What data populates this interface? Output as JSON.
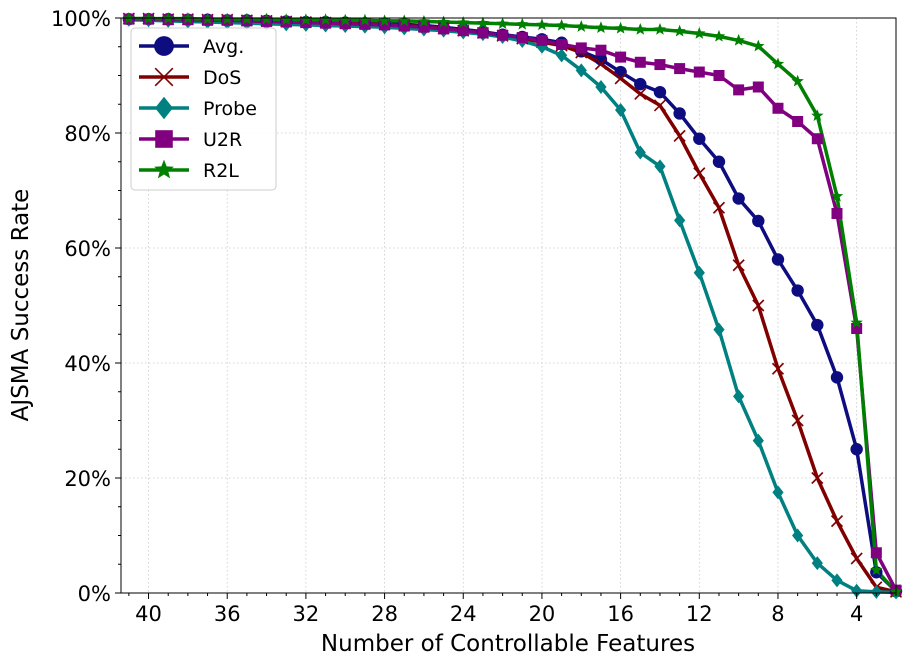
{
  "chart_data": {
    "type": "line",
    "title": "",
    "xlabel": "Number of Controllable Features",
    "ylabel": "AJSMA Success Rate",
    "x_reversed": true,
    "xlim": [
      41.4,
      2.0
    ],
    "ylim": [
      0,
      100
    ],
    "xticks": [
      40,
      36,
      32,
      28,
      24,
      20,
      16,
      12,
      8,
      4
    ],
    "xtick_labels": [
      "40",
      "36",
      "32",
      "28",
      "24",
      "20",
      "16",
      "12",
      "8",
      "4"
    ],
    "yticks": [
      0,
      20,
      40,
      60,
      80,
      100
    ],
    "ytick_labels": [
      "0%",
      "20%",
      "40%",
      "60%",
      "80%",
      "100%"
    ],
    "grid": true,
    "legend_position": "top-left",
    "x": [
      41,
      40,
      39,
      38,
      37,
      36,
      35,
      34,
      33,
      32,
      31,
      30,
      29,
      28,
      27,
      26,
      25,
      24,
      23,
      22,
      21,
      20,
      19,
      18,
      17,
      16,
      15,
      14,
      13,
      12,
      11,
      10,
      9,
      8,
      7,
      6,
      5,
      4,
      3,
      2
    ],
    "series": [
      {
        "name": "Avg.",
        "color": "#0d0d80",
        "marker": "circle",
        "values": [
          99.8,
          99.8,
          99.8,
          99.7,
          99.7,
          99.6,
          99.6,
          99.5,
          99.4,
          99.3,
          99.3,
          99.2,
          99.1,
          99.0,
          98.9,
          98.7,
          98.4,
          98.0,
          97.6,
          97.1,
          96.7,
          96.3,
          95.7,
          94.2,
          92.8,
          90.6,
          88.5,
          87.1,
          83.4,
          79.0,
          75.0,
          68.6,
          64.7,
          58.0,
          52.6,
          46.6,
          37.5,
          25.0,
          3.6,
          0.3
        ]
      },
      {
        "name": "DoS",
        "color": "#800000",
        "marker": "x",
        "values": [
          99.9,
          99.9,
          99.8,
          99.8,
          99.7,
          99.7,
          99.6,
          99.5,
          99.4,
          99.3,
          99.2,
          99.1,
          99.0,
          98.9,
          98.7,
          98.5,
          98.2,
          97.8,
          97.4,
          96.9,
          96.4,
          95.8,
          95.2,
          94.0,
          92.0,
          89.5,
          86.8,
          84.8,
          79.5,
          73.0,
          67.0,
          57.0,
          50.0,
          39.0,
          30.0,
          20.0,
          12.5,
          6.0,
          1.0,
          0.2
        ]
      },
      {
        "name": "Probe",
        "color": "#008080",
        "marker": "diamond",
        "values": [
          99.7,
          99.6,
          99.5,
          99.4,
          99.3,
          99.2,
          99.1,
          99.0,
          98.9,
          98.8,
          98.7,
          98.6,
          98.5,
          98.4,
          98.2,
          98.0,
          97.8,
          97.5,
          97.2,
          96.7,
          96.0,
          95.0,
          93.5,
          90.9,
          88.0,
          84.0,
          76.6,
          74.2,
          64.8,
          55.7,
          45.8,
          34.2,
          26.5,
          17.5,
          10.0,
          5.2,
          2.2,
          0.4,
          0.2,
          0.1
        ]
      },
      {
        "name": "U2R",
        "color": "#800080",
        "marker": "square",
        "values": [
          99.8,
          99.8,
          99.7,
          99.7,
          99.6,
          99.6,
          99.5,
          99.4,
          99.3,
          99.2,
          99.1,
          99.0,
          98.9,
          98.8,
          98.6,
          98.4,
          98.1,
          97.8,
          97.4,
          97.0,
          96.6,
          96.1,
          95.4,
          94.8,
          94.4,
          93.2,
          92.3,
          91.9,
          91.2,
          90.6,
          90.0,
          87.5,
          88.0,
          84.3,
          82.0,
          79.0,
          66.0,
          46.0,
          7.0,
          0.5
        ]
      },
      {
        "name": "R2L",
        "color": "#008000",
        "marker": "star",
        "values": [
          99.9,
          99.9,
          99.9,
          99.9,
          99.8,
          99.8,
          99.8,
          99.8,
          99.7,
          99.7,
          99.7,
          99.6,
          99.6,
          99.5,
          99.5,
          99.4,
          99.3,
          99.2,
          99.1,
          99.0,
          98.9,
          98.8,
          98.7,
          98.5,
          98.3,
          98.2,
          98.0,
          98.0,
          97.7,
          97.3,
          96.8,
          96.1,
          95.1,
          92.0,
          89.0,
          83.0,
          69.0,
          47.0,
          4.0,
          0.2
        ]
      }
    ]
  }
}
